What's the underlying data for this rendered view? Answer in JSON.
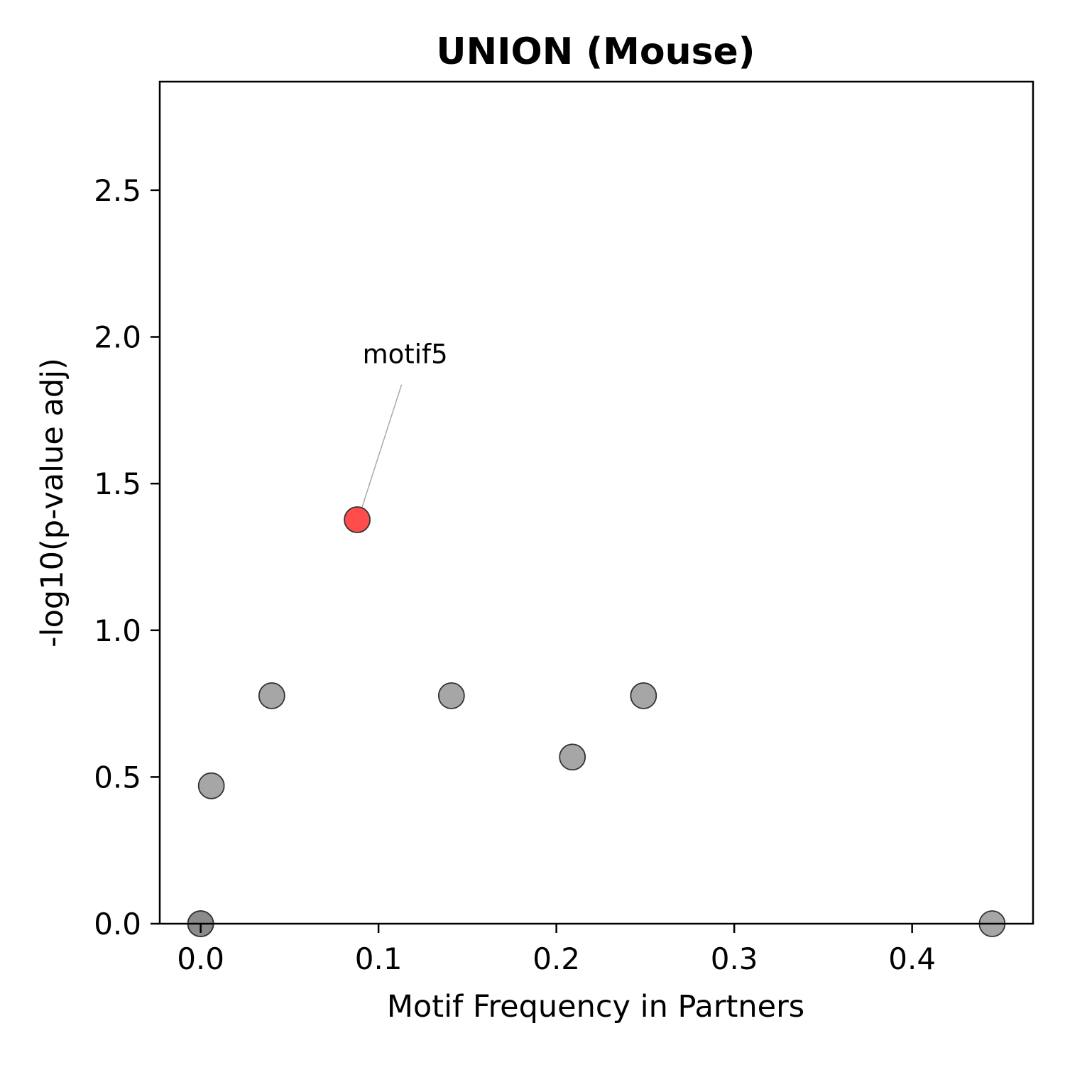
{
  "chart_data": {
    "type": "scatter",
    "title": "UNION (Mouse)",
    "xlabel": "Motif Frequency in Partners",
    "ylabel": "-log10(p-value adj)",
    "xlim": [
      -0.023,
      0.468
    ],
    "ylim": [
      0.0,
      2.87
    ],
    "xticks": [
      0.0,
      0.1,
      0.2,
      0.3,
      0.4
    ],
    "xtick_labels": [
      "0.0",
      "0.1",
      "0.2",
      "0.3",
      "0.4"
    ],
    "yticks": [
      0.0,
      0.5,
      1.0,
      1.5,
      2.0,
      2.5
    ],
    "ytick_labels": [
      "0.0",
      "0.5",
      "1.0",
      "1.5",
      "2.0",
      "2.5"
    ],
    "grid": false,
    "colors": {
      "default": "#808080",
      "highlight": "#ff0000",
      "edge": "#333333"
    },
    "points": [
      {
        "x": 0.0,
        "y": 0.0,
        "highlight": false
      },
      {
        "x": 0.0,
        "y": 0.0,
        "highlight": false
      },
      {
        "x": 0.006,
        "y": 0.47,
        "highlight": false
      },
      {
        "x": 0.04,
        "y": 0.777,
        "highlight": false
      },
      {
        "x": 0.088,
        "y": 1.377,
        "highlight": true
      },
      {
        "x": 0.141,
        "y": 0.777,
        "highlight": false
      },
      {
        "x": 0.209,
        "y": 0.568,
        "highlight": false
      },
      {
        "x": 0.249,
        "y": 0.777,
        "highlight": false
      },
      {
        "x": 0.445,
        "y": 0.0,
        "highlight": false
      }
    ],
    "annotations": [
      {
        "text": "motif5",
        "point_x": 0.088,
        "point_y": 1.377,
        "text_x": 0.091,
        "text_y": 1.91
      }
    ]
  }
}
